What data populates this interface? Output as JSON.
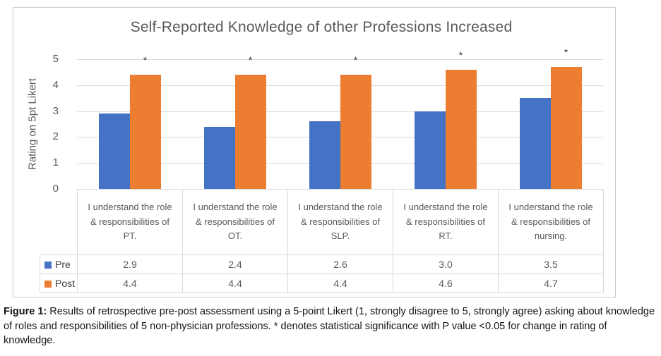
{
  "chart_data": {
    "type": "bar",
    "title": "Self-Reported Knowledge of other Professions Increased",
    "ylabel": "Rating on 5pt Likert",
    "xlabel": "",
    "ylim": [
      0,
      5
    ],
    "yticks": [
      0,
      1,
      2,
      3,
      4,
      5
    ],
    "gridlines": true,
    "legend_position": "table-rows-left",
    "categories": [
      "I understand the role & responsibilities of PT.",
      "I understand the role & responsibilities of OT.",
      "I understand the role & responsibilities of SLP.",
      "I understand the role & responsibilities of RT.",
      "I understand the role & responsibilities of nursing."
    ],
    "series": [
      {
        "name": "Pre",
        "color": "#4472C4",
        "values": [
          2.9,
          2.4,
          2.6,
          3.0,
          3.5
        ]
      },
      {
        "name": "Post",
        "color": "#ED7D31",
        "values": [
          4.4,
          4.4,
          4.4,
          4.6,
          4.7
        ]
      }
    ],
    "significance_marker": "*",
    "significant_categories": [
      true,
      true,
      true,
      true,
      true
    ],
    "colors": {
      "title_text": "#595959",
      "axis_text": "#595959",
      "gridline": "#d9d9d9",
      "table_border": "#d9d9d9"
    }
  },
  "caption": {
    "label": "Figure 1:",
    "lines": [
      " Results of retrospective pre-post assessment using a 5-point Likert (1, strongly disagree to 5, strongly agree) asking",
      "about knowledge of roles and responsibilities of 5 non-physician professions. * denotes statistical significance with P value",
      "<0.05 for change in rating of knowledge."
    ]
  }
}
